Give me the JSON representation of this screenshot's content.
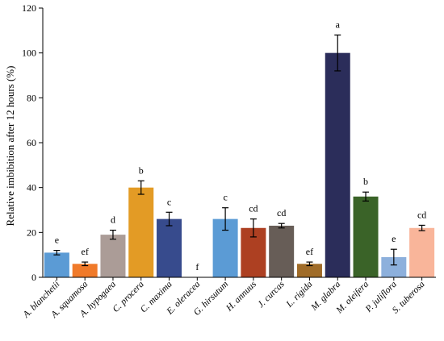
{
  "chart_data": {
    "type": "bar",
    "title": "",
    "xlabel": "",
    "ylabel": "Relative imbibition after 12 hours (%)",
    "ylim": [
      0,
      120
    ],
    "yticks": [
      0,
      20,
      40,
      60,
      80,
      100,
      120
    ],
    "grid": false,
    "categories": [
      "A. blanchetii",
      "A. squamosa",
      "A. hypogaea",
      "C. procera",
      "C. maxima",
      "E. oleracea",
      "G. hirsutum",
      "H. annuus",
      "J. curcas",
      "L. rigida",
      "M. glabra",
      "M. oleifera",
      "P. juliflora",
      "S. tuberosa"
    ],
    "values": [
      11,
      6,
      19,
      40,
      26,
      0,
      26,
      22,
      23,
      6,
      100,
      36,
      9,
      22
    ],
    "errors": [
      1,
      0.8,
      2,
      3,
      3,
      0,
      5,
      4,
      1,
      0.8,
      8,
      2,
      3.5,
      1.2
    ],
    "significance": [
      "e",
      "ef",
      "d",
      "b",
      "c",
      "f",
      "c",
      "cd",
      "cd",
      "ef",
      "a",
      "b",
      "e",
      "cd"
    ],
    "colors": [
      "#5b9bd5",
      "#f07a2a",
      "#ab9c97",
      "#e39b25",
      "#374b8d",
      "#ffffff",
      "#5b9bd5",
      "#ad4022",
      "#675d57",
      "#a06c28",
      "#2b2d5a",
      "#3a6328",
      "#8db0dc",
      "#f9b59a"
    ]
  }
}
